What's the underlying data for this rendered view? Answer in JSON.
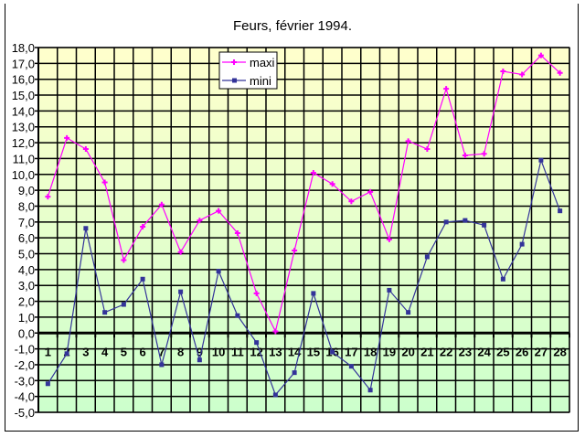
{
  "chart_data": {
    "type": "line",
    "title": "Feurs, février 1994.",
    "xlabel": "",
    "ylabel": "",
    "categories": [
      "1",
      "2",
      "3",
      "4",
      "5",
      "6",
      "7",
      "8",
      "9",
      "10",
      "11",
      "12",
      "13",
      "14",
      "15",
      "16",
      "17",
      "18",
      "19",
      "20",
      "21",
      "22",
      "23",
      "24",
      "25",
      "26",
      "27",
      "28"
    ],
    "ylim": [
      -5,
      18
    ],
    "ytick_step": 1,
    "ytick_labels": [
      "18,0",
      "17,0",
      "16,0",
      "15,0",
      "14,0",
      "13,0",
      "12,0",
      "11,0",
      "10,0",
      "9,0",
      "8,0",
      "7,0",
      "6,0",
      "5,0",
      "4,0",
      "3,0",
      "2,0",
      "1,0",
      "0,0",
      "-1,0",
      "-2,0",
      "-3,0",
      "-4,0",
      "-5,0"
    ],
    "grid": true,
    "legend_position": "top-center",
    "background_gradient": [
      "#ffffcc",
      "#ccffcc"
    ],
    "series": [
      {
        "name": "maxi",
        "color": "#ff00ff",
        "marker": "plus",
        "values": [
          8.6,
          12.3,
          11.6,
          9.5,
          4.6,
          6.7,
          8.1,
          5.1,
          7.1,
          7.7,
          6.3,
          2.5,
          0.1,
          5.2,
          10.1,
          9.4,
          8.3,
          8.9,
          5.9,
          12.1,
          11.6,
          15.4,
          11.2,
          11.3,
          16.5,
          16.3,
          17.5,
          16.4
        ]
      },
      {
        "name": "mini",
        "color": "#333399",
        "marker": "square",
        "values": [
          -3.2,
          -1.3,
          6.6,
          1.3,
          1.8,
          3.4,
          -2.0,
          2.6,
          -1.7,
          3.9,
          1.1,
          -0.6,
          -3.9,
          -2.5,
          2.5,
          -1.2,
          -2.1,
          -3.6,
          2.7,
          1.3,
          4.8,
          7.0,
          7.1,
          6.8,
          3.4,
          5.6,
          10.9,
          7.7
        ]
      }
    ]
  }
}
